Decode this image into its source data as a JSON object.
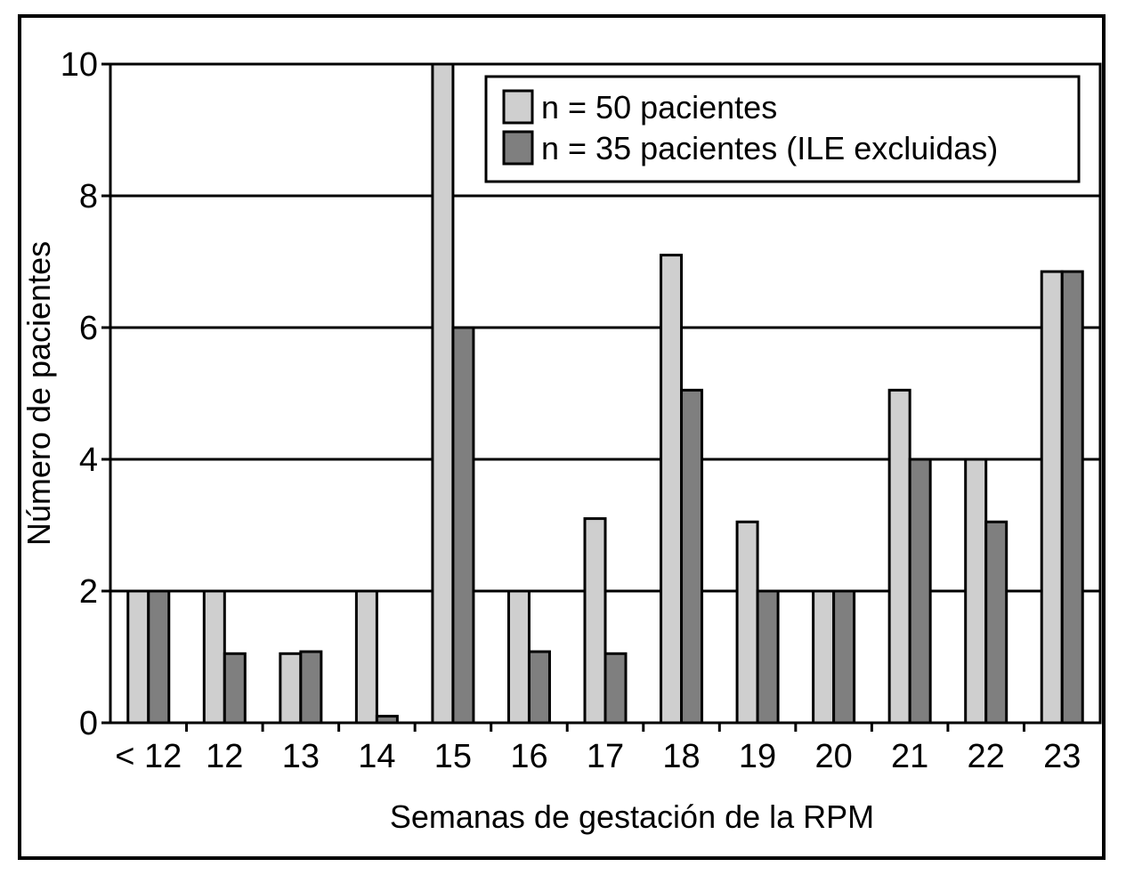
{
  "chart_data": {
    "type": "bar",
    "title": "",
    "xlabel": "Semanas de gestación de la RPM",
    "ylabel": "Número de pacientes",
    "ylim": [
      0,
      10
    ],
    "yticks": [
      0,
      2,
      4,
      6,
      8,
      10
    ],
    "grid": true,
    "legend_position": "top-right",
    "categories": [
      "< 12",
      "12",
      "13",
      "14",
      "15",
      "16",
      "17",
      "18",
      "19",
      "20",
      "21",
      "22",
      "23"
    ],
    "series": [
      {
        "name": "n = 50 pacientes",
        "color": "#cfcfcf",
        "values": [
          2,
          2,
          1.05,
          2,
          10,
          2,
          3.1,
          7.1,
          3.05,
          2,
          5.05,
          4,
          6.85
        ]
      },
      {
        "name": "n = 35 pacientes (ILE excluidas)",
        "color": "#7f7f7f",
        "values": [
          2,
          1.05,
          1.08,
          0.1,
          6,
          1.08,
          1.05,
          5.05,
          2,
          2,
          4,
          3.05,
          6.85
        ]
      }
    ]
  }
}
